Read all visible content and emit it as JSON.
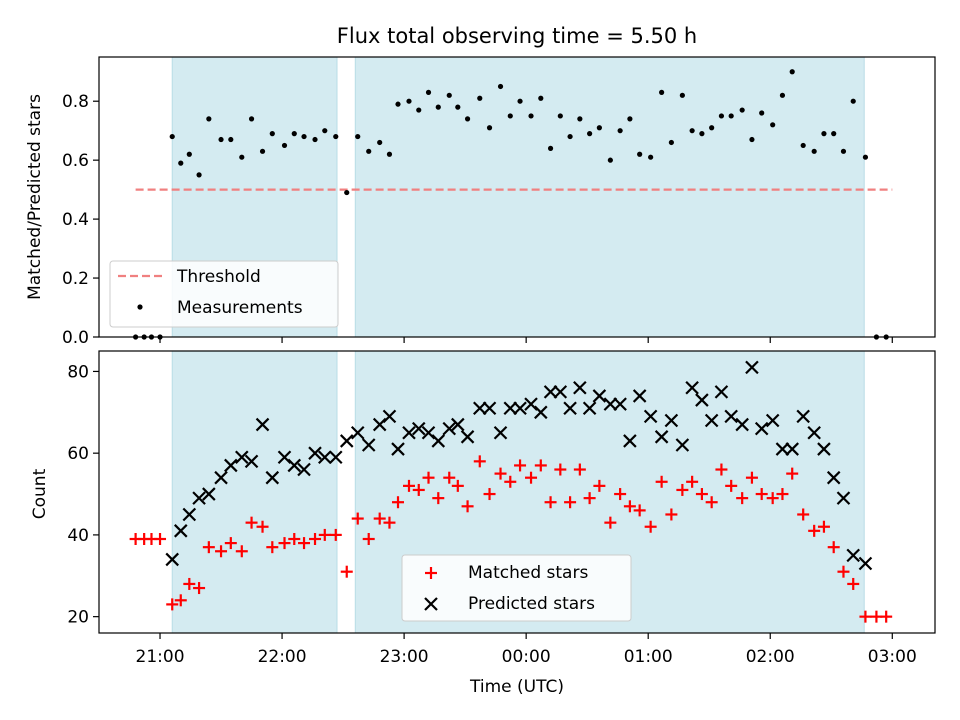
{
  "chart_data": [
    {
      "type": "scatter",
      "title": "Flux total observing time = 5.50 h",
      "ylabel": "Matched/Predicted stars",
      "ylim": [
        0,
        0.95
      ],
      "yticks": [
        "0.0",
        "0.2",
        "0.4",
        "0.6",
        "0.8"
      ],
      "ytick_values": [
        0,
        0.2,
        0.4,
        0.6,
        0.8
      ],
      "x_unit": "hours after 20:00 UTC",
      "xlim": [
        0.5,
        7.35
      ],
      "shaded_regions": [
        [
          1.1,
          2.45
        ],
        [
          2.6,
          6.77
        ]
      ],
      "shade_color": "#d4ebf1",
      "threshold": {
        "name": "Threshold",
        "value": 0.5,
        "x_range": [
          0.8,
          7.0
        ],
        "color": "#f08080"
      },
      "measurements_name": "Measurements",
      "legend_position": "lower left",
      "series": [
        {
          "name": "Measurements",
          "color": "#000000",
          "points": [
            [
              0.8,
              0
            ],
            [
              0.87,
              0
            ],
            [
              0.93,
              0
            ],
            [
              1.0,
              0
            ],
            [
              1.1,
              0.68
            ],
            [
              1.17,
              0.59
            ],
            [
              1.24,
              0.62
            ],
            [
              1.32,
              0.55
            ],
            [
              1.4,
              0.74
            ],
            [
              1.5,
              0.67
            ],
            [
              1.58,
              0.67
            ],
            [
              1.67,
              0.61
            ],
            [
              1.75,
              0.74
            ],
            [
              1.84,
              0.63
            ],
            [
              1.92,
              0.69
            ],
            [
              2.02,
              0.65
            ],
            [
              2.1,
              0.69
            ],
            [
              2.18,
              0.68
            ],
            [
              2.27,
              0.67
            ],
            [
              2.35,
              0.7
            ],
            [
              2.44,
              0.68
            ],
            [
              2.53,
              0.49
            ],
            [
              2.62,
              0.68
            ],
            [
              2.71,
              0.63
            ],
            [
              2.8,
              0.66
            ],
            [
              2.88,
              0.62
            ],
            [
              2.95,
              0.79
            ],
            [
              3.04,
              0.8
            ],
            [
              3.12,
              0.77
            ],
            [
              3.2,
              0.83
            ],
            [
              3.28,
              0.78
            ],
            [
              3.37,
              0.82
            ],
            [
              3.44,
              0.78
            ],
            [
              3.52,
              0.74
            ],
            [
              3.62,
              0.81
            ],
            [
              3.7,
              0.71
            ],
            [
              3.79,
              0.85
            ],
            [
              3.87,
              0.75
            ],
            [
              3.95,
              0.8
            ],
            [
              4.04,
              0.75
            ],
            [
              4.12,
              0.81
            ],
            [
              4.2,
              0.64
            ],
            [
              4.28,
              0.75
            ],
            [
              4.36,
              0.68
            ],
            [
              4.44,
              0.74
            ],
            [
              4.52,
              0.69
            ],
            [
              4.6,
              0.71
            ],
            [
              4.69,
              0.6
            ],
            [
              4.77,
              0.7
            ],
            [
              4.85,
              0.74
            ],
            [
              4.93,
              0.62
            ],
            [
              5.02,
              0.61
            ],
            [
              5.11,
              0.83
            ],
            [
              5.19,
              0.66
            ],
            [
              5.28,
              0.82
            ],
            [
              5.36,
              0.7
            ],
            [
              5.44,
              0.69
            ],
            [
              5.52,
              0.71
            ],
            [
              5.6,
              0.75
            ],
            [
              5.68,
              0.75
            ],
            [
              5.77,
              0.77
            ],
            [
              5.85,
              0.67
            ],
            [
              5.93,
              0.76
            ],
            [
              6.02,
              0.72
            ],
            [
              6.1,
              0.82
            ],
            [
              6.18,
              0.9
            ],
            [
              6.27,
              0.65
            ],
            [
              6.36,
              0.63
            ],
            [
              6.44,
              0.69
            ],
            [
              6.52,
              0.69
            ],
            [
              6.6,
              0.63
            ],
            [
              6.68,
              0.8
            ],
            [
              6.78,
              0.61
            ],
            [
              6.87,
              0
            ],
            [
              6.95,
              0
            ]
          ]
        }
      ]
    },
    {
      "type": "scatter",
      "xlabel": "Time (UTC)",
      "ylabel": "Count",
      "ylim": [
        16,
        85
      ],
      "yticks": [
        "20",
        "40",
        "60",
        "80"
      ],
      "ytick_values": [
        20,
        40,
        60,
        80
      ],
      "x_unit": "hours after 20:00 UTC",
      "xlim": [
        0.5,
        7.35
      ],
      "xticks": [
        "21:00",
        "22:00",
        "23:00",
        "00:00",
        "01:00",
        "02:00",
        "03:00"
      ],
      "xtick_values": [
        1,
        2,
        3,
        4,
        5,
        6,
        7
      ],
      "shaded_regions": [
        [
          1.1,
          2.45
        ],
        [
          2.6,
          6.77
        ]
      ],
      "legend_position": "lower center",
      "series": [
        {
          "name": "Matched stars",
          "marker": "plus",
          "color": "#ff0000",
          "points": [
            [
              0.8,
              39
            ],
            [
              0.87,
              39
            ],
            [
              0.93,
              39
            ],
            [
              1.0,
              39
            ],
            [
              1.1,
              23
            ],
            [
              1.17,
              24
            ],
            [
              1.24,
              28
            ],
            [
              1.32,
              27
            ],
            [
              1.4,
              37
            ],
            [
              1.5,
              36
            ],
            [
              1.58,
              38
            ],
            [
              1.67,
              36
            ],
            [
              1.75,
              43
            ],
            [
              1.84,
              42
            ],
            [
              1.92,
              37
            ],
            [
              2.02,
              38
            ],
            [
              2.1,
              39
            ],
            [
              2.18,
              38
            ],
            [
              2.27,
              39
            ],
            [
              2.35,
              40
            ],
            [
              2.44,
              40
            ],
            [
              2.53,
              31
            ],
            [
              2.62,
              44
            ],
            [
              2.71,
              39
            ],
            [
              2.8,
              44
            ],
            [
              2.88,
              43
            ],
            [
              2.95,
              48
            ],
            [
              3.04,
              52
            ],
            [
              3.12,
              51
            ],
            [
              3.2,
              54
            ],
            [
              3.28,
              49
            ],
            [
              3.37,
              54
            ],
            [
              3.44,
              52
            ],
            [
              3.52,
              47
            ],
            [
              3.62,
              58
            ],
            [
              3.7,
              50
            ],
            [
              3.79,
              55
            ],
            [
              3.87,
              53
            ],
            [
              3.95,
              57
            ],
            [
              4.04,
              54
            ],
            [
              4.12,
              57
            ],
            [
              4.2,
              48
            ],
            [
              4.28,
              56
            ],
            [
              4.36,
              48
            ],
            [
              4.44,
              56
            ],
            [
              4.52,
              49
            ],
            [
              4.6,
              52
            ],
            [
              4.69,
              43
            ],
            [
              4.77,
              50
            ],
            [
              4.85,
              47
            ],
            [
              4.93,
              46
            ],
            [
              5.02,
              42
            ],
            [
              5.11,
              53
            ],
            [
              5.19,
              45
            ],
            [
              5.28,
              51
            ],
            [
              5.36,
              53
            ],
            [
              5.44,
              50
            ],
            [
              5.52,
              48
            ],
            [
              5.6,
              56
            ],
            [
              5.68,
              52
            ],
            [
              5.77,
              49
            ],
            [
              5.85,
              54
            ],
            [
              5.93,
              50
            ],
            [
              6.02,
              49
            ],
            [
              6.1,
              50
            ],
            [
              6.18,
              55
            ],
            [
              6.27,
              45
            ],
            [
              6.36,
              41
            ],
            [
              6.44,
              42
            ],
            [
              6.52,
              37
            ],
            [
              6.6,
              31
            ],
            [
              6.68,
              28
            ],
            [
              6.78,
              20
            ],
            [
              6.87,
              20
            ],
            [
              6.95,
              20
            ]
          ]
        },
        {
          "name": "Predicted stars",
          "marker": "x",
          "color": "#000000",
          "points": [
            [
              1.1,
              34
            ],
            [
              1.17,
              41
            ],
            [
              1.24,
              45
            ],
            [
              1.32,
              49
            ],
            [
              1.4,
              50
            ],
            [
              1.5,
              54
            ],
            [
              1.58,
              57
            ],
            [
              1.67,
              59
            ],
            [
              1.75,
              58
            ],
            [
              1.84,
              67
            ],
            [
              1.92,
              54
            ],
            [
              2.02,
              59
            ],
            [
              2.1,
              57
            ],
            [
              2.18,
              56
            ],
            [
              2.27,
              60
            ],
            [
              2.35,
              59
            ],
            [
              2.44,
              59
            ],
            [
              2.53,
              63
            ],
            [
              2.62,
              65
            ],
            [
              2.71,
              62
            ],
            [
              2.8,
              67
            ],
            [
              2.88,
              69
            ],
            [
              2.95,
              61
            ],
            [
              3.04,
              65
            ],
            [
              3.12,
              66
            ],
            [
              3.2,
              65
            ],
            [
              3.28,
              63
            ],
            [
              3.37,
              66
            ],
            [
              3.44,
              67
            ],
            [
              3.52,
              64
            ],
            [
              3.62,
              71
            ],
            [
              3.7,
              71
            ],
            [
              3.79,
              65
            ],
            [
              3.87,
              71
            ],
            [
              3.95,
              71
            ],
            [
              4.04,
              72
            ],
            [
              4.12,
              70
            ],
            [
              4.2,
              75
            ],
            [
              4.28,
              75
            ],
            [
              4.36,
              71
            ],
            [
              4.44,
              76
            ],
            [
              4.52,
              71
            ],
            [
              4.6,
              74
            ],
            [
              4.69,
              72
            ],
            [
              4.77,
              72
            ],
            [
              4.85,
              63
            ],
            [
              4.93,
              74
            ],
            [
              5.02,
              69
            ],
            [
              5.11,
              64
            ],
            [
              5.19,
              68
            ],
            [
              5.28,
              62
            ],
            [
              5.36,
              76
            ],
            [
              5.44,
              73
            ],
            [
              5.52,
              68
            ],
            [
              5.6,
              75
            ],
            [
              5.68,
              69
            ],
            [
              5.77,
              67
            ],
            [
              5.85,
              81
            ],
            [
              5.93,
              66
            ],
            [
              6.02,
              68
            ],
            [
              6.1,
              61
            ],
            [
              6.18,
              61
            ],
            [
              6.27,
              69
            ],
            [
              6.36,
              65
            ],
            [
              6.44,
              61
            ],
            [
              6.52,
              54
            ],
            [
              6.6,
              49
            ],
            [
              6.68,
              35
            ],
            [
              6.78,
              33
            ]
          ]
        }
      ]
    }
  ]
}
